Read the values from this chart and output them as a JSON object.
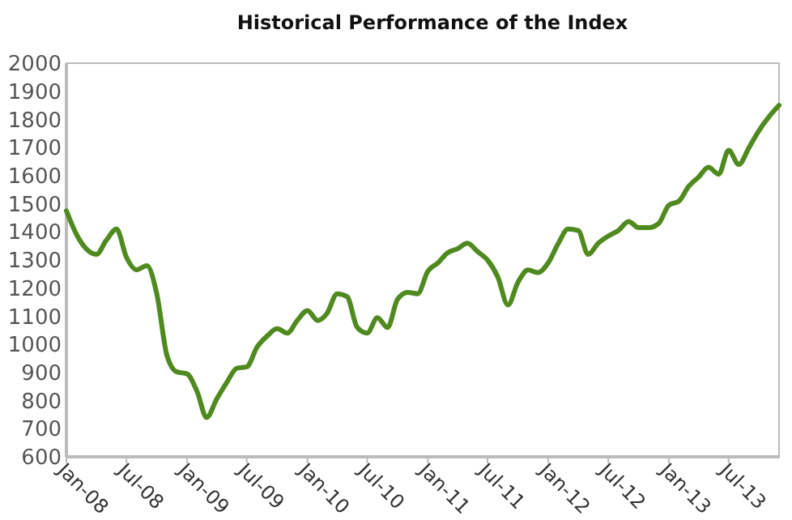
{
  "chart_data": {
    "type": "line",
    "title": "Historical Performance of the Index",
    "x": [
      "2008-01",
      "2008-02",
      "2008-03",
      "2008-04",
      "2008-05",
      "2008-06",
      "2008-07",
      "2008-08",
      "2008-09",
      "2008-10",
      "2008-11",
      "2008-12",
      "2009-01",
      "2009-02",
      "2009-03",
      "2009-04",
      "2009-05",
      "2009-06",
      "2009-07",
      "2009-08",
      "2009-09",
      "2009-10",
      "2009-11",
      "2009-12",
      "2010-01",
      "2010-02",
      "2010-03",
      "2010-04",
      "2010-05",
      "2010-06",
      "2010-07",
      "2010-08",
      "2010-09",
      "2010-10",
      "2010-11",
      "2010-12",
      "2011-01",
      "2011-02",
      "2011-03",
      "2011-04",
      "2011-05",
      "2011-06",
      "2011-07",
      "2011-08",
      "2011-09",
      "2011-10",
      "2011-11",
      "2011-12",
      "2012-01",
      "2012-02",
      "2012-03",
      "2012-04",
      "2012-05",
      "2012-06",
      "2012-07",
      "2012-08",
      "2012-09",
      "2012-10",
      "2012-11",
      "2012-12",
      "2013-01",
      "2013-02",
      "2013-03",
      "2013-04",
      "2013-05",
      "2013-06",
      "2013-07",
      "2013-08",
      "2013-09",
      "2013-10",
      "2013-11",
      "2013-12"
    ],
    "series": [
      {
        "color": "#4f8a1f",
        "values": [
          1475,
          1390,
          1340,
          1320,
          1370,
          1410,
          1310,
          1265,
          1280,
          1180,
          960,
          902,
          895,
          830,
          740,
          806,
          864,
          915,
          920,
          990,
          1030,
          1056,
          1040,
          1085,
          1120,
          1085,
          1110,
          1180,
          1170,
          1060,
          1040,
          1095,
          1060,
          1160,
          1185,
          1180,
          1260,
          1290,
          1325,
          1340,
          1360,
          1330,
          1300,
          1240,
          1140,
          1220,
          1265,
          1255,
          1290,
          1360,
          1410,
          1405,
          1320,
          1360,
          1385,
          1405,
          1437,
          1415,
          1415,
          1430,
          1495,
          1510,
          1560,
          1595,
          1630,
          1605,
          1690,
          1640,
          1700,
          1760,
          1810,
          1850
        ]
      }
    ],
    "xlim": [
      "2008-01",
      "2013-12"
    ],
    "xticks": [
      {
        "value": "2008-01",
        "label": "Jan-08"
      },
      {
        "value": "2008-07",
        "label": "Jul-08"
      },
      {
        "value": "2009-01",
        "label": "Jan-09"
      },
      {
        "value": "2009-07",
        "label": "Jul-09"
      },
      {
        "value": "2010-01",
        "label": "Jan-10"
      },
      {
        "value": "2010-07",
        "label": "Jul-10"
      },
      {
        "value": "2011-01",
        "label": "Jan-11"
      },
      {
        "value": "2011-07",
        "label": "Jul-11"
      },
      {
        "value": "2012-01",
        "label": "Jan-12"
      },
      {
        "value": "2012-07",
        "label": "Jul-12"
      },
      {
        "value": "2013-01",
        "label": "Jan-13"
      },
      {
        "value": "2013-07",
        "label": "Jul-13"
      }
    ],
    "ylim": [
      600,
      2000
    ],
    "yticks": [
      600,
      700,
      800,
      900,
      1000,
      1100,
      1200,
      1300,
      1400,
      1500,
      1600,
      1700,
      1800,
      1900,
      2000
    ],
    "marker": "none",
    "line_style": "solid"
  }
}
